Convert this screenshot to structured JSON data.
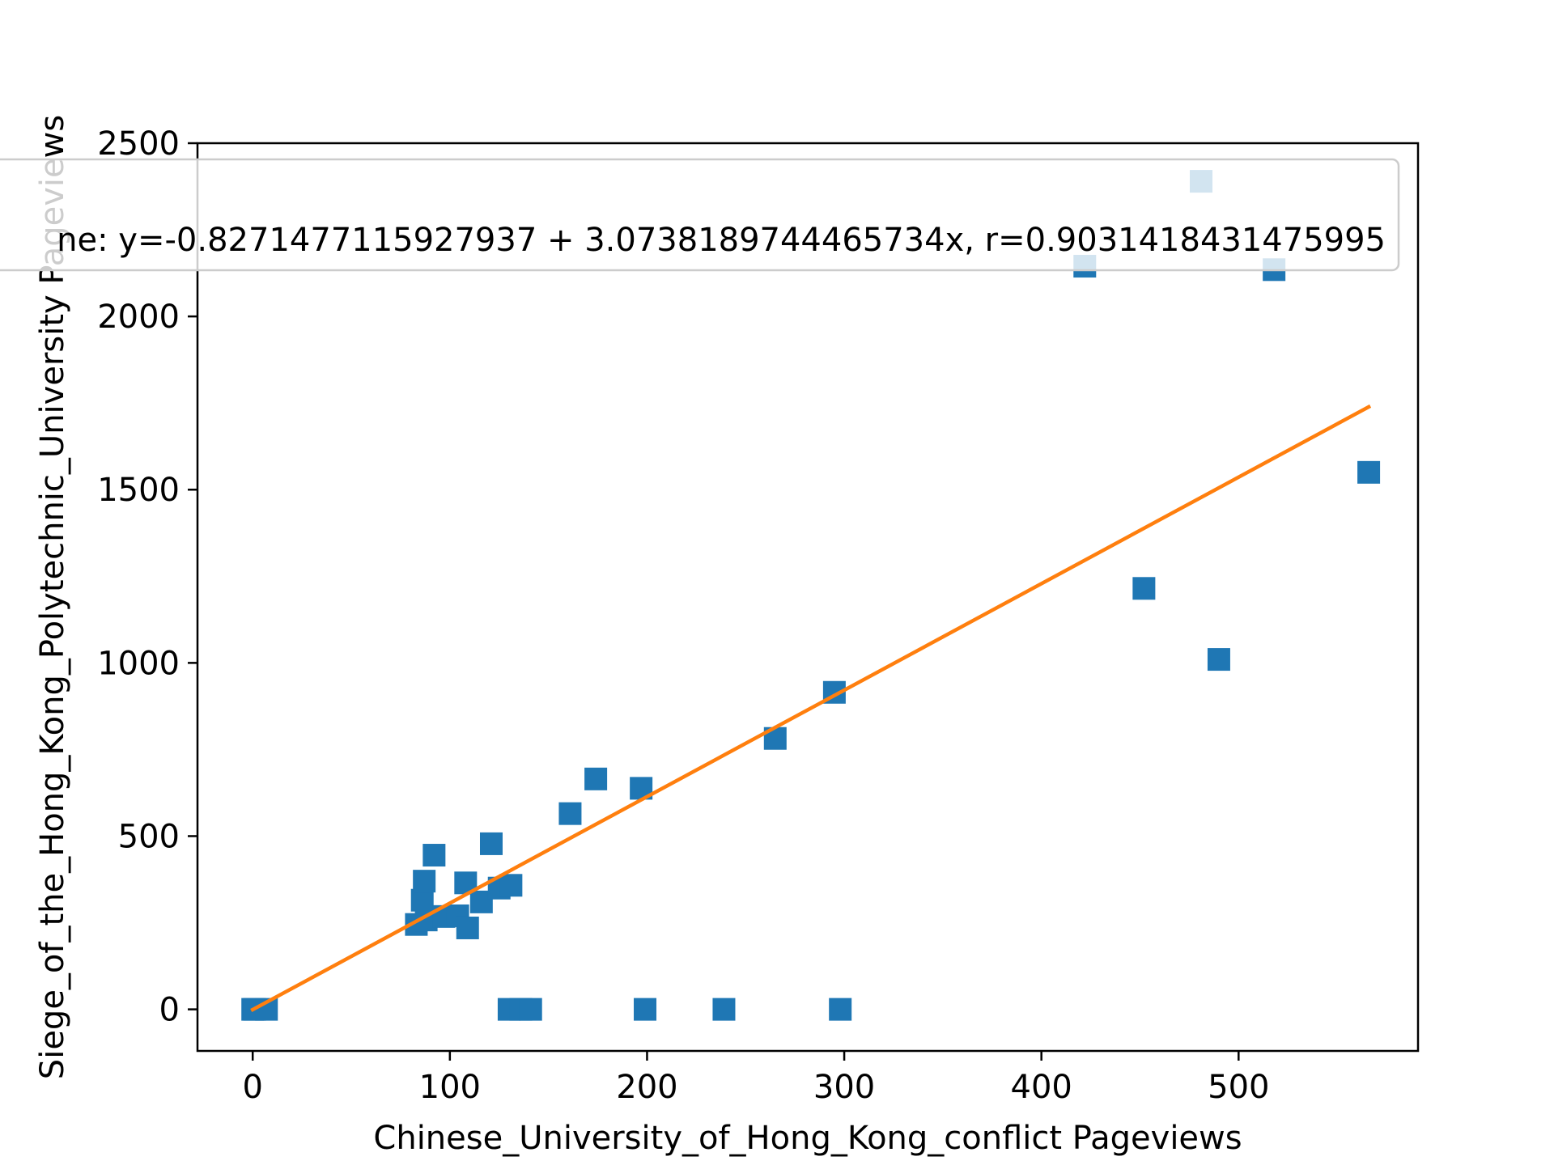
{
  "chart_data": {
    "type": "scatter",
    "title": "",
    "xlabel": "Chinese_University_of_Hong_Kong_conflict Pageviews",
    "ylabel": "Siege_of_the_Hong_Kong_Polytechnic_University Pageviews",
    "xlim": [
      -28,
      591
    ],
    "ylim": [
      -120,
      2500
    ],
    "xticks": [
      "0",
      "100",
      "200",
      "300",
      "400",
      "500"
    ],
    "yticks": [
      "0",
      "500",
      "1000",
      "1500",
      "2000",
      "2500"
    ],
    "xtick_values": [
      0,
      100,
      200,
      300,
      400,
      500
    ],
    "ytick_values": [
      0,
      500,
      1000,
      1500,
      2000,
      2500
    ],
    "grid": false,
    "legend_position": "upper center",
    "legend_label": "ne: y=-0.8271477115927937 + 3.0738189744465734x, r=0.9031418431475995",
    "series": [
      {
        "kind": "scatter",
        "marker": "square",
        "color": "#1f77b4",
        "points": [
          [
            0,
            0
          ],
          [
            1,
            0
          ],
          [
            7,
            0
          ],
          [
            83,
            245
          ],
          [
            86,
            315
          ],
          [
            87,
            370
          ],
          [
            88,
            258
          ],
          [
            92,
            445
          ],
          [
            97,
            268
          ],
          [
            104,
            270
          ],
          [
            108,
            365
          ],
          [
            109,
            235
          ],
          [
            116,
            310
          ],
          [
            121,
            478
          ],
          [
            125,
            350
          ],
          [
            131,
            358
          ],
          [
            130,
            0
          ],
          [
            136,
            0
          ],
          [
            141,
            0
          ],
          [
            161,
            565
          ],
          [
            174,
            665
          ],
          [
            197,
            638
          ],
          [
            199,
            0
          ],
          [
            239,
            0
          ],
          [
            298,
            0
          ],
          [
            265,
            782
          ],
          [
            295,
            915
          ],
          [
            422,
            2145
          ],
          [
            452,
            1215
          ],
          [
            481,
            2390
          ],
          [
            490,
            1010
          ],
          [
            518,
            2135
          ],
          [
            566,
            1550
          ]
        ]
      },
      {
        "kind": "line",
        "color": "#ff7f0e",
        "intercept": -0.8271477115927937,
        "slope": 3.0738189744465734,
        "x_range": [
          0,
          566
        ]
      }
    ]
  }
}
